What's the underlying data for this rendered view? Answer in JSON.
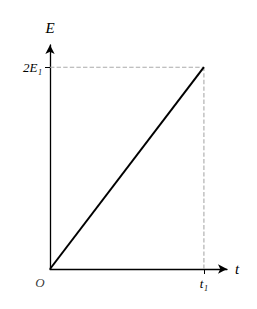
{
  "chart_data": {
    "type": "line",
    "xlabel": "t",
    "ylabel": "E",
    "series": [
      {
        "x": [
          0,
          1
        ],
        "values": [
          0,
          2
        ],
        "color": "#000000",
        "line_style": "solid"
      },
      {
        "x": [
          0,
          1
        ],
        "values": [
          2,
          2
        ],
        "color": "#aaaaaa",
        "line_style": "dashed"
      },
      {
        "x": [
          1,
          1
        ],
        "values": [
          0,
          2
        ],
        "color": "#aaaaaa",
        "line_style": "dashed"
      }
    ],
    "xlim": [
      0,
      1.15
    ],
    "ylim": [
      0,
      2.22
    ],
    "xticks": [
      {
        "value": 1,
        "label": "t₁"
      }
    ],
    "yticks": [
      {
        "value": 2,
        "label": "2E₁"
      }
    ],
    "annotations": [
      {
        "text": "O",
        "x": 0,
        "y": 0
      }
    ],
    "grid": false
  }
}
